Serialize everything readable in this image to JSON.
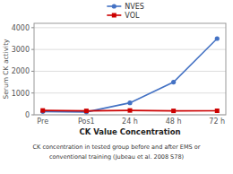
{
  "chart_data": {
    "type": "line",
    "categories": [
      "Pre",
      "Pos1",
      "24 h",
      "48 h",
      "72 h"
    ],
    "series": [
      {
        "name": "NVES",
        "color": "#4472C4",
        "marker": "circle",
        "values": [
          150,
          130,
          550,
          1500,
          3500
        ]
      },
      {
        "name": "VOL",
        "color": "#CC0000",
        "marker": "square",
        "values": [
          200,
          180,
          200,
          180,
          185
        ]
      }
    ],
    "y_label": "Serum CK activity",
    "x_label": "CK Value Concentration",
    "annotations": [
      "CK concentration in tested group before and after EMS or",
      "conventional training (Jubeau et al. 2008 S78)"
    ],
    "ylim": [
      0,
      4200
    ],
    "yticks": [
      0,
      1000,
      2000,
      3000,
      4000
    ],
    "grid": "y",
    "legend": "top"
  }
}
